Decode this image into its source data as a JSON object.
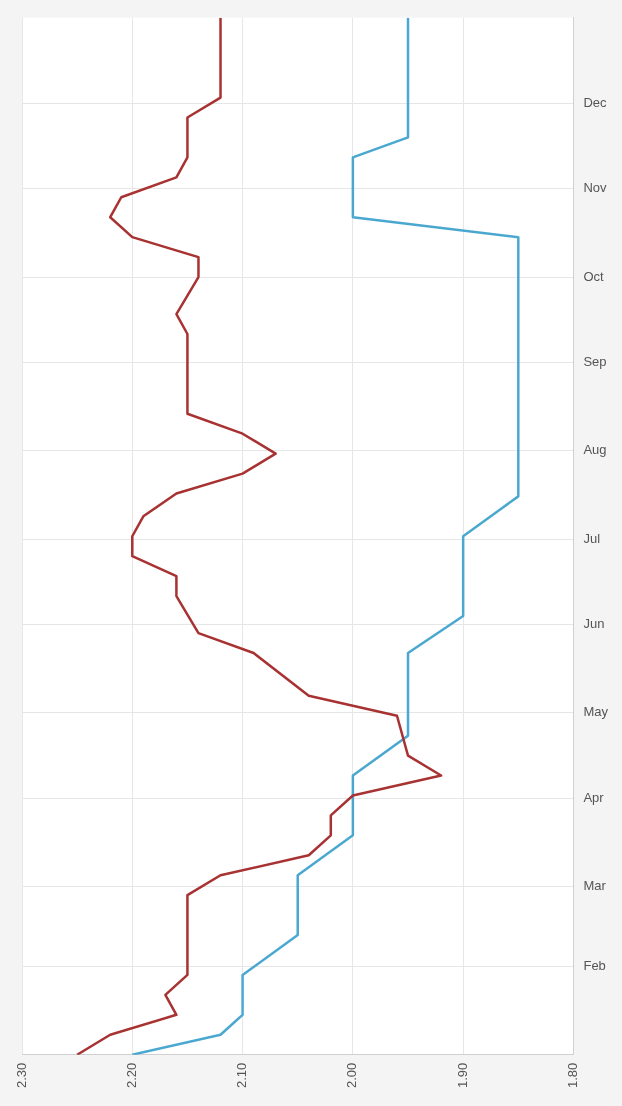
{
  "chart_data": {
    "type": "line",
    "orientation": "horizontal",
    "ylim": [
      "--01-01",
      "--12-31"
    ],
    "yticks": [
      {
        "value": "--02-01",
        "label": "Feb"
      },
      {
        "value": "--03-01",
        "label": "Mar"
      },
      {
        "value": "--04-01",
        "label": "Apr"
      },
      {
        "value": "--05-01",
        "label": "May"
      },
      {
        "value": "--06-01",
        "label": "Jun"
      },
      {
        "value": "--07-01",
        "label": "Jul"
      },
      {
        "value": "--08-01",
        "label": "Aug"
      },
      {
        "value": "--09-01",
        "label": "Sep"
      },
      {
        "value": "--10-01",
        "label": "Oct"
      },
      {
        "value": "--11-01",
        "label": "Nov"
      },
      {
        "value": "--12-01",
        "label": "Dec"
      }
    ],
    "xlim": [
      2.3,
      1.8
    ],
    "xticks": [
      {
        "value": 2.3,
        "label": "2.30"
      },
      {
        "value": 2.2,
        "label": "2.20"
      },
      {
        "value": 2.1,
        "label": "2.10"
      },
      {
        "value": 2.0,
        "label": "2.00"
      },
      {
        "value": 1.9,
        "label": "1.90"
      },
      {
        "value": 1.8,
        "label": "1.80"
      }
    ],
    "grid": true,
    "legend": false,
    "marker": "none",
    "line_style": "solid",
    "series": [
      {
        "color": "#a83232",
        "x": [
          "--01-01",
          "--01-08",
          "--01-15",
          "--01-22",
          "--01-29",
          "--02-26",
          "--03-05",
          "--03-12",
          "--03-19",
          "--03-26",
          "--04-02",
          "--04-09",
          "--04-16",
          "--04-30",
          "--05-07",
          "--05-22",
          "--05-29",
          "--06-11",
          "--06-18",
          "--06-25",
          "--07-02",
          "--07-09",
          "--07-17",
          "--07-24",
          "--07-31",
          "--08-07",
          "--08-14",
          "--09-11",
          "--09-18",
          "--10-01",
          "--10-08",
          "--10-15",
          "--10-22",
          "--10-29",
          "--11-05",
          "--11-12",
          "--11-26",
          "--12-03",
          "--12-10",
          "--12-31"
        ],
        "values": [
          2.25,
          2.22,
          2.16,
          2.17,
          2.15,
          2.15,
          2.12,
          2.04,
          2.02,
          2.02,
          2.0,
          1.92,
          1.95,
          1.96,
          2.04,
          2.09,
          2.14,
          2.16,
          2.16,
          2.2,
          2.2,
          2.19,
          2.16,
          2.1,
          2.07,
          2.1,
          2.15,
          2.15,
          2.16,
          2.14,
          2.14,
          2.2,
          2.22,
          2.21,
          2.16,
          2.15,
          2.15,
          2.12,
          2.12,
          2.12
        ]
      },
      {
        "color": "#4aa8d0",
        "x": [
          "--01-01",
          "--01-08",
          "--01-15",
          "--01-29",
          "--02-12",
          "--03-05",
          "--03-19",
          "--04-09",
          "--04-23",
          "--05-22",
          "--06-04",
          "--07-02",
          "--07-16",
          "--10-15",
          "--10-22",
          "--11-12",
          "--11-19",
          "--12-31"
        ],
        "values": [
          2.2,
          2.12,
          2.1,
          2.1,
          2.05,
          2.05,
          2.0,
          2.0,
          1.95,
          1.95,
          1.9,
          1.9,
          1.85,
          1.85,
          2.0,
          2.0,
          1.95,
          1.95
        ]
      }
    ]
  }
}
